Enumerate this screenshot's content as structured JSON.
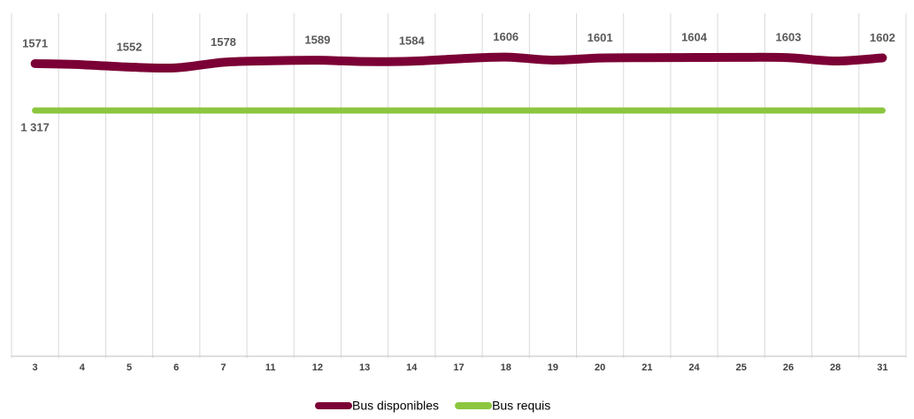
{
  "chart_data": {
    "type": "line",
    "categories": [
      "3",
      "4",
      "5",
      "6",
      "7",
      "11",
      "12",
      "13",
      "14",
      "17",
      "18",
      "19",
      "20",
      "21",
      "24",
      "25",
      "26",
      "28",
      "31"
    ],
    "series": [
      {
        "name": "Bus disponibles",
        "color": "#7b0035",
        "values": [
          1571,
          1565,
          1552,
          1548,
          1578,
          1586,
          1589,
          1582,
          1584,
          1597,
          1606,
          1590,
          1601,
          1603,
          1604,
          1605,
          1603,
          1585,
          1602
        ]
      },
      {
        "name": "Bus requis",
        "color": "#8cc63f",
        "values": [
          1317,
          1317,
          1317,
          1317,
          1317,
          1317,
          1317,
          1317,
          1317,
          1317,
          1317,
          1317,
          1317,
          1317,
          1317,
          1317,
          1317,
          1317,
          1317
        ],
        "value_labels": [
          "1 317",
          null,
          null,
          null,
          null,
          null,
          null,
          null,
          null,
          null,
          null,
          null,
          null,
          null,
          null,
          null,
          null,
          null,
          null
        ]
      }
    ],
    "ylim": [
      0,
      1700
    ],
    "grid": true,
    "legend": "bottom"
  }
}
